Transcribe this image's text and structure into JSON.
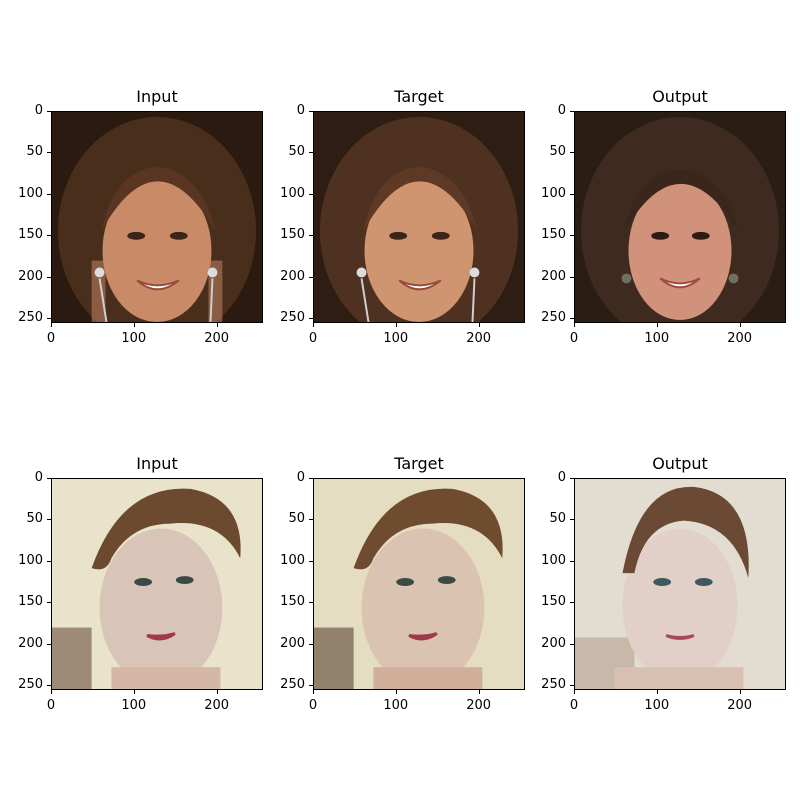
{
  "figure": {
    "rows": [
      {
        "panels": [
          {
            "title": "Input",
            "image": "face-photo-woman-long-brown-hair-smiling-earrings"
          },
          {
            "title": "Target",
            "image": "face-photo-woman-long-brown-hair-smiling-earrings-target"
          },
          {
            "title": "Output",
            "image": "face-photo-woman-long-brown-hair-smiling-earrings-output"
          }
        ]
      },
      {
        "panels": [
          {
            "title": "Input",
            "image": "face-photo-woman-short-brown-hair-looking-left"
          },
          {
            "title": "Target",
            "image": "face-photo-woman-short-brown-hair-looking-left-target"
          },
          {
            "title": "Output",
            "image": "face-photo-woman-short-brown-hair-looking-left-output"
          }
        ]
      }
    ],
    "x_ticks": [
      "0",
      "100",
      "200"
    ],
    "y_ticks": [
      "0",
      "50",
      "100",
      "150",
      "200",
      "250"
    ],
    "axis_range": [
      0,
      256
    ]
  },
  "colors": {
    "row1_bg_dark": "#2b1a10",
    "row1_hair": "#4a2e1c",
    "row1_skin": "#c98b67",
    "row2_bg_light": "#e9e3cc",
    "row2_hair": "#6b4a30",
    "row2_skin": "#d9c5b8"
  }
}
